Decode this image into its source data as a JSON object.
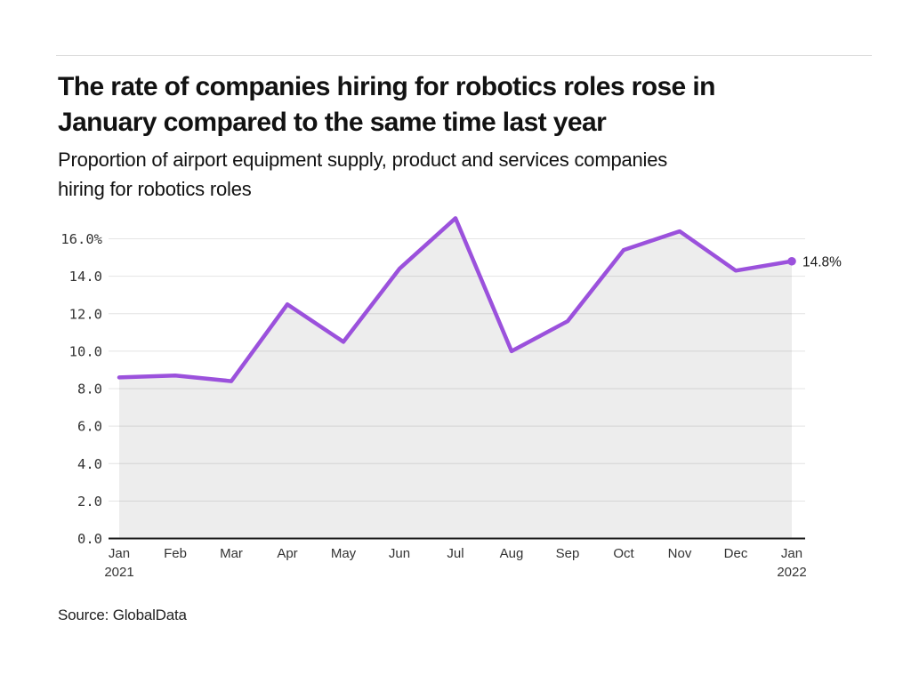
{
  "page": {
    "title_line1": "The rate of companies hiring for robotics roles rose in",
    "title_line2": "January compared to the same time last year",
    "subtitle_line1": "Proportion of airport equipment supply, product and services companies",
    "subtitle_line2": "hiring for robotics roles",
    "source": "Source: GlobalData"
  },
  "chart_data": {
    "type": "area",
    "title": "The rate of companies hiring for robotics roles rose in January compared to the same time last year",
    "subtitle": "Proportion of airport equipment supply, product and services companies hiring for robotics roles",
    "categories": [
      "Jan 2021",
      "Feb",
      "Mar",
      "Apr",
      "May",
      "Jun",
      "Jul",
      "Aug",
      "Sep",
      "Oct",
      "Nov",
      "Dec",
      "Jan 2022"
    ],
    "values": [
      8.6,
      8.7,
      8.4,
      12.5,
      10.5,
      14.4,
      17.1,
      10.0,
      11.6,
      15.4,
      16.4,
      14.3,
      14.8
    ],
    "unit": "%",
    "end_point_label": "14.8%",
    "y_tick_labels_top_to_bottom": [
      "16.0%",
      "14.0",
      "12.0",
      "10.0",
      "8.0",
      "6.0",
      "4.0",
      "2.0",
      "0.0"
    ],
    "y_tick_values_top_to_bottom": [
      16,
      14,
      12,
      10,
      8,
      6,
      4,
      2,
      0
    ],
    "x_tick_months": [
      "Jan",
      "Feb",
      "Mar",
      "Apr",
      "May",
      "Jun",
      "Jul",
      "Aug",
      "Sep",
      "Oct",
      "Nov",
      "Dec",
      "Jan"
    ],
    "x_first_year": "2021",
    "x_last_year": "2022",
    "ylim": [
      0,
      17.5
    ],
    "grid": true,
    "legend": "none",
    "colors": {
      "line": "#9b51dc",
      "fill": "#111111",
      "fill_opacity": "0.075",
      "grid": "#e4e4e4",
      "axis": "#1a1a1a",
      "tick_text": "#333333",
      "label_text": "#1a1a1a"
    }
  }
}
